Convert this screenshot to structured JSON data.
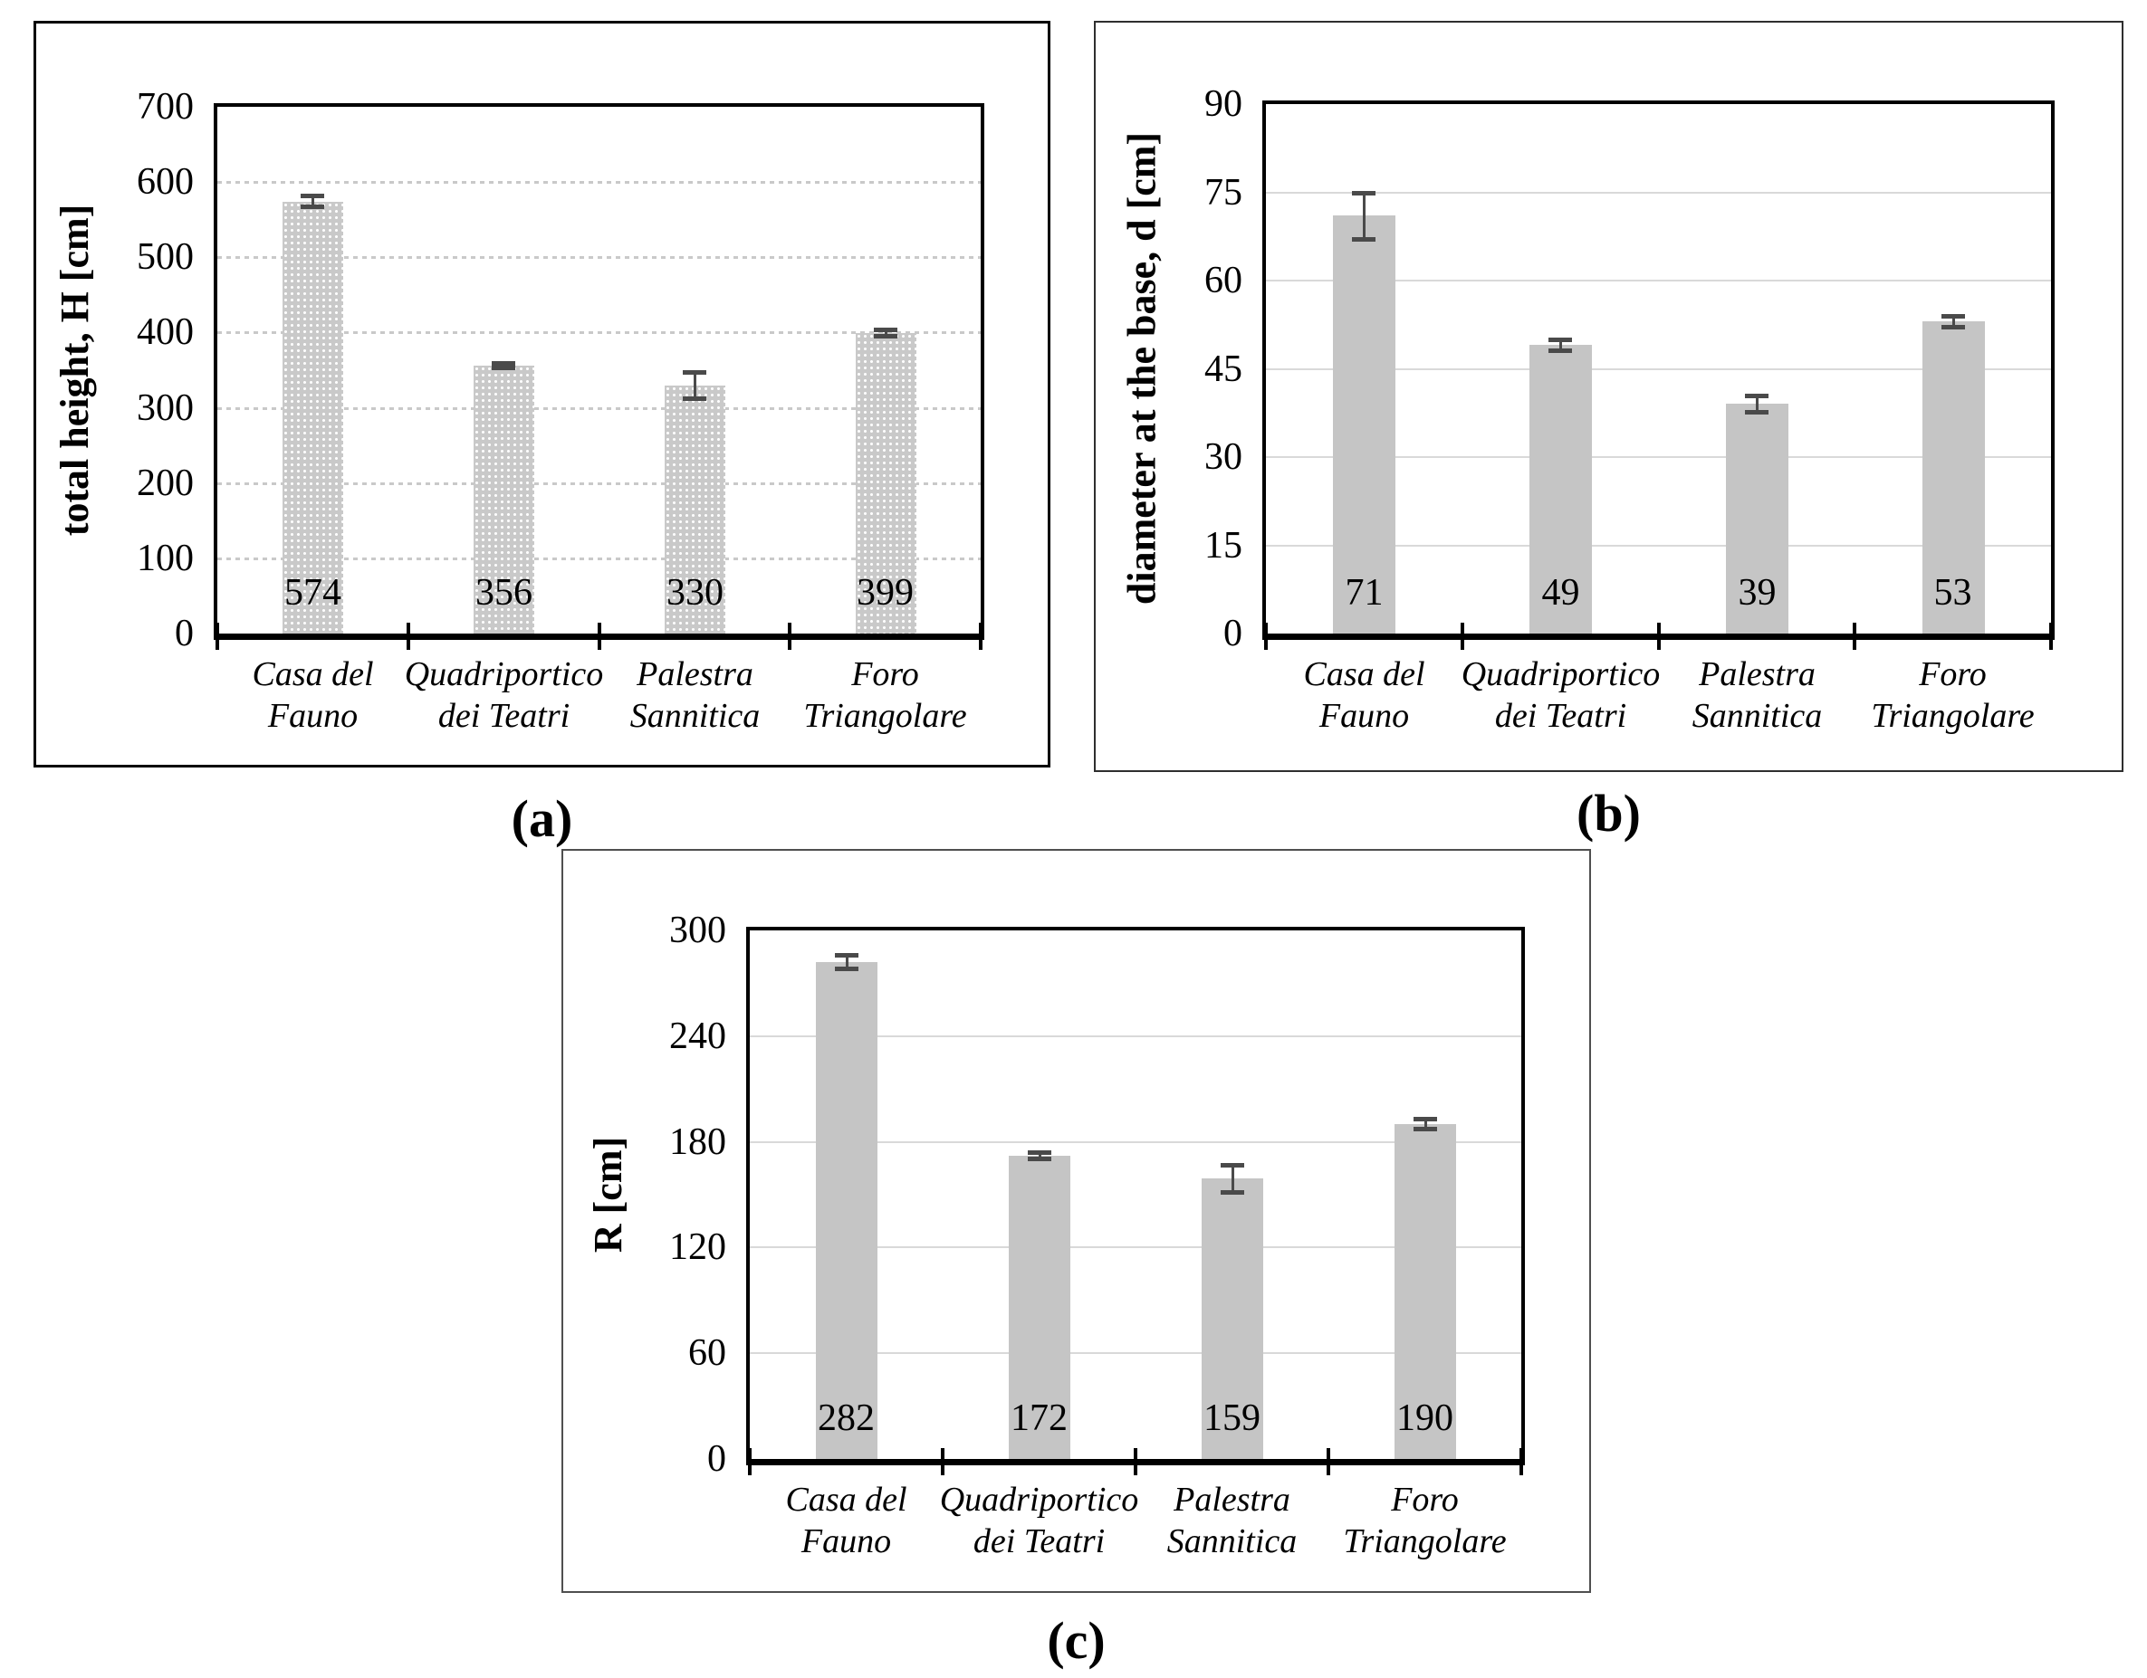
{
  "figure": {
    "description": "Three bar charts of column measurements at four Pompeii sites",
    "captions": {
      "a": "(a)",
      "b": "(b)",
      "c": "(c)"
    }
  },
  "chart_data": [
    {
      "panel_label": "(a)",
      "type": "bar",
      "title": "",
      "xlabel": "",
      "ylabel": "total height, H [cm]",
      "categories": [
        [
          "Casa del",
          "Fauno"
        ],
        [
          "Quadriportico",
          "dei Teatri"
        ],
        [
          "Palestra",
          "Sannitica"
        ],
        [
          "Foro",
          "Triangolare"
        ]
      ],
      "values": [
        574,
        356,
        330,
        399
      ],
      "data_labels": [
        "574",
        "356",
        "330",
        "399"
      ],
      "errors": [
        8,
        4,
        18,
        5
      ],
      "ylim": [
        0,
        700
      ],
      "yticks": [
        0,
        100,
        200,
        300,
        400,
        500,
        600,
        700
      ],
      "grid": true,
      "legend_position": "none",
      "bar_fill": "dotted",
      "colors": {
        "bar": "#c9c9c9",
        "error": "#4a4a4a",
        "grid": "#c9c9c9",
        "frame": "#000000"
      }
    },
    {
      "panel_label": "(b)",
      "type": "bar",
      "title": "",
      "xlabel": "",
      "ylabel": "diameter at the base, d [cm]",
      "categories": [
        [
          "Casa del",
          "Fauno"
        ],
        [
          "Quadriportico",
          "dei Teatri"
        ],
        [
          "Palestra",
          "Sannitica"
        ],
        [
          "Foro",
          "Triangolare"
        ]
      ],
      "values": [
        71,
        49,
        39,
        53
      ],
      "data_labels": [
        "71",
        "49",
        "39",
        "53"
      ],
      "errors": [
        4,
        1,
        1.5,
        1
      ],
      "ylim": [
        0,
        90
      ],
      "yticks": [
        0,
        15,
        30,
        45,
        60,
        75,
        90
      ],
      "grid": true,
      "legend_position": "none",
      "bar_fill": "solid",
      "colors": {
        "bar": "#c5c5c5",
        "error": "#4a4a4a",
        "grid": "#d9d9d9",
        "frame": "#000000"
      }
    },
    {
      "panel_label": "(c)",
      "type": "bar",
      "title": "",
      "xlabel": "",
      "ylabel": "R [cm]",
      "categories": [
        [
          "Casa del",
          "Fauno"
        ],
        [
          "Quadriportico",
          "dei Teatri"
        ],
        [
          "Palestra",
          "Sannitica"
        ],
        [
          "Foro",
          "Triangolare"
        ]
      ],
      "values": [
        282,
        172,
        159,
        190
      ],
      "data_labels": [
        "282",
        "172",
        "159",
        "190"
      ],
      "errors": [
        4,
        2,
        8,
        3
      ],
      "ylim": [
        0,
        300
      ],
      "yticks": [
        0,
        60,
        120,
        180,
        240,
        300
      ],
      "grid": true,
      "legend_position": "none",
      "bar_fill": "solid",
      "colors": {
        "bar": "#c5c5c5",
        "error": "#4a4a4a",
        "grid": "#d9d9d9",
        "frame": "#000000"
      }
    }
  ]
}
